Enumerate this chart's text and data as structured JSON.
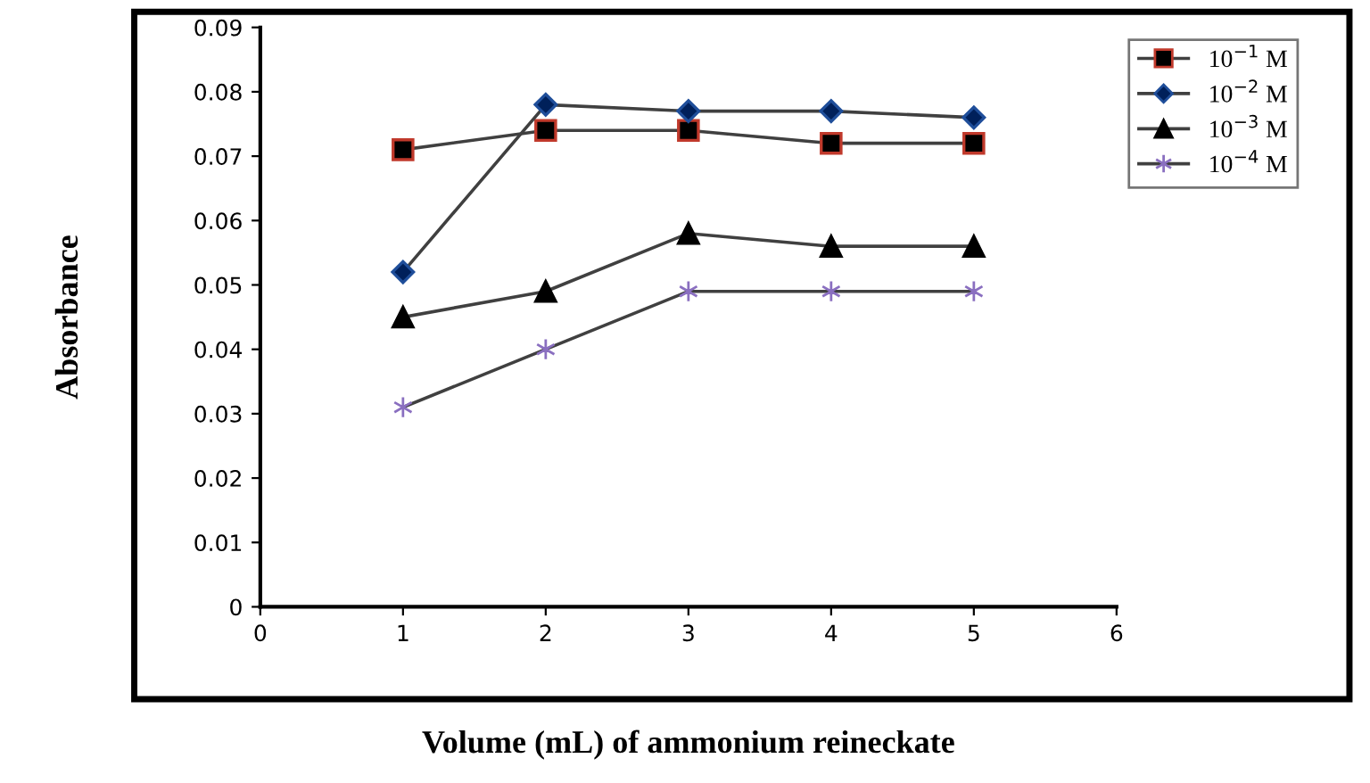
{
  "chart_data": {
    "type": "line",
    "xlabel": "Volume (mL) of ammonium reineckate",
    "ylabel": "Absorbance",
    "x": [
      1,
      2,
      3,
      4,
      5
    ],
    "xlim": [
      0,
      6
    ],
    "xticks": [
      0,
      1,
      2,
      3,
      4,
      5,
      6
    ],
    "ylim": [
      0,
      0.09
    ],
    "yticks": [
      0,
      0.01,
      0.02,
      0.03,
      0.04,
      0.05,
      0.06,
      0.07,
      0.08,
      0.09
    ],
    "grid": false,
    "legend": "top right",
    "series": [
      {
        "name": "10$^{−1}$ M",
        "color": "#000000",
        "marker": "square",
        "values": [
          0.071,
          0.074,
          0.074,
          0.072,
          0.072
        ]
      },
      {
        "name": "10$^{−2}$ M",
        "color": "#00205a",
        "marker": "diamond",
        "values": [
          0.052,
          0.078,
          0.077,
          0.077,
          0.076
        ]
      },
      {
        "name": "10$^{−3}$ M",
        "color": "#000000",
        "marker": "triangle",
        "values": [
          0.045,
          0.049,
          0.058,
          0.056,
          0.056
        ]
      },
      {
        "name": "10$^{−4}$ M",
        "color": "#8a6fc0",
        "marker": "cross",
        "values": [
          0.031,
          0.04,
          0.049,
          0.049,
          0.049
        ]
      }
    ]
  }
}
